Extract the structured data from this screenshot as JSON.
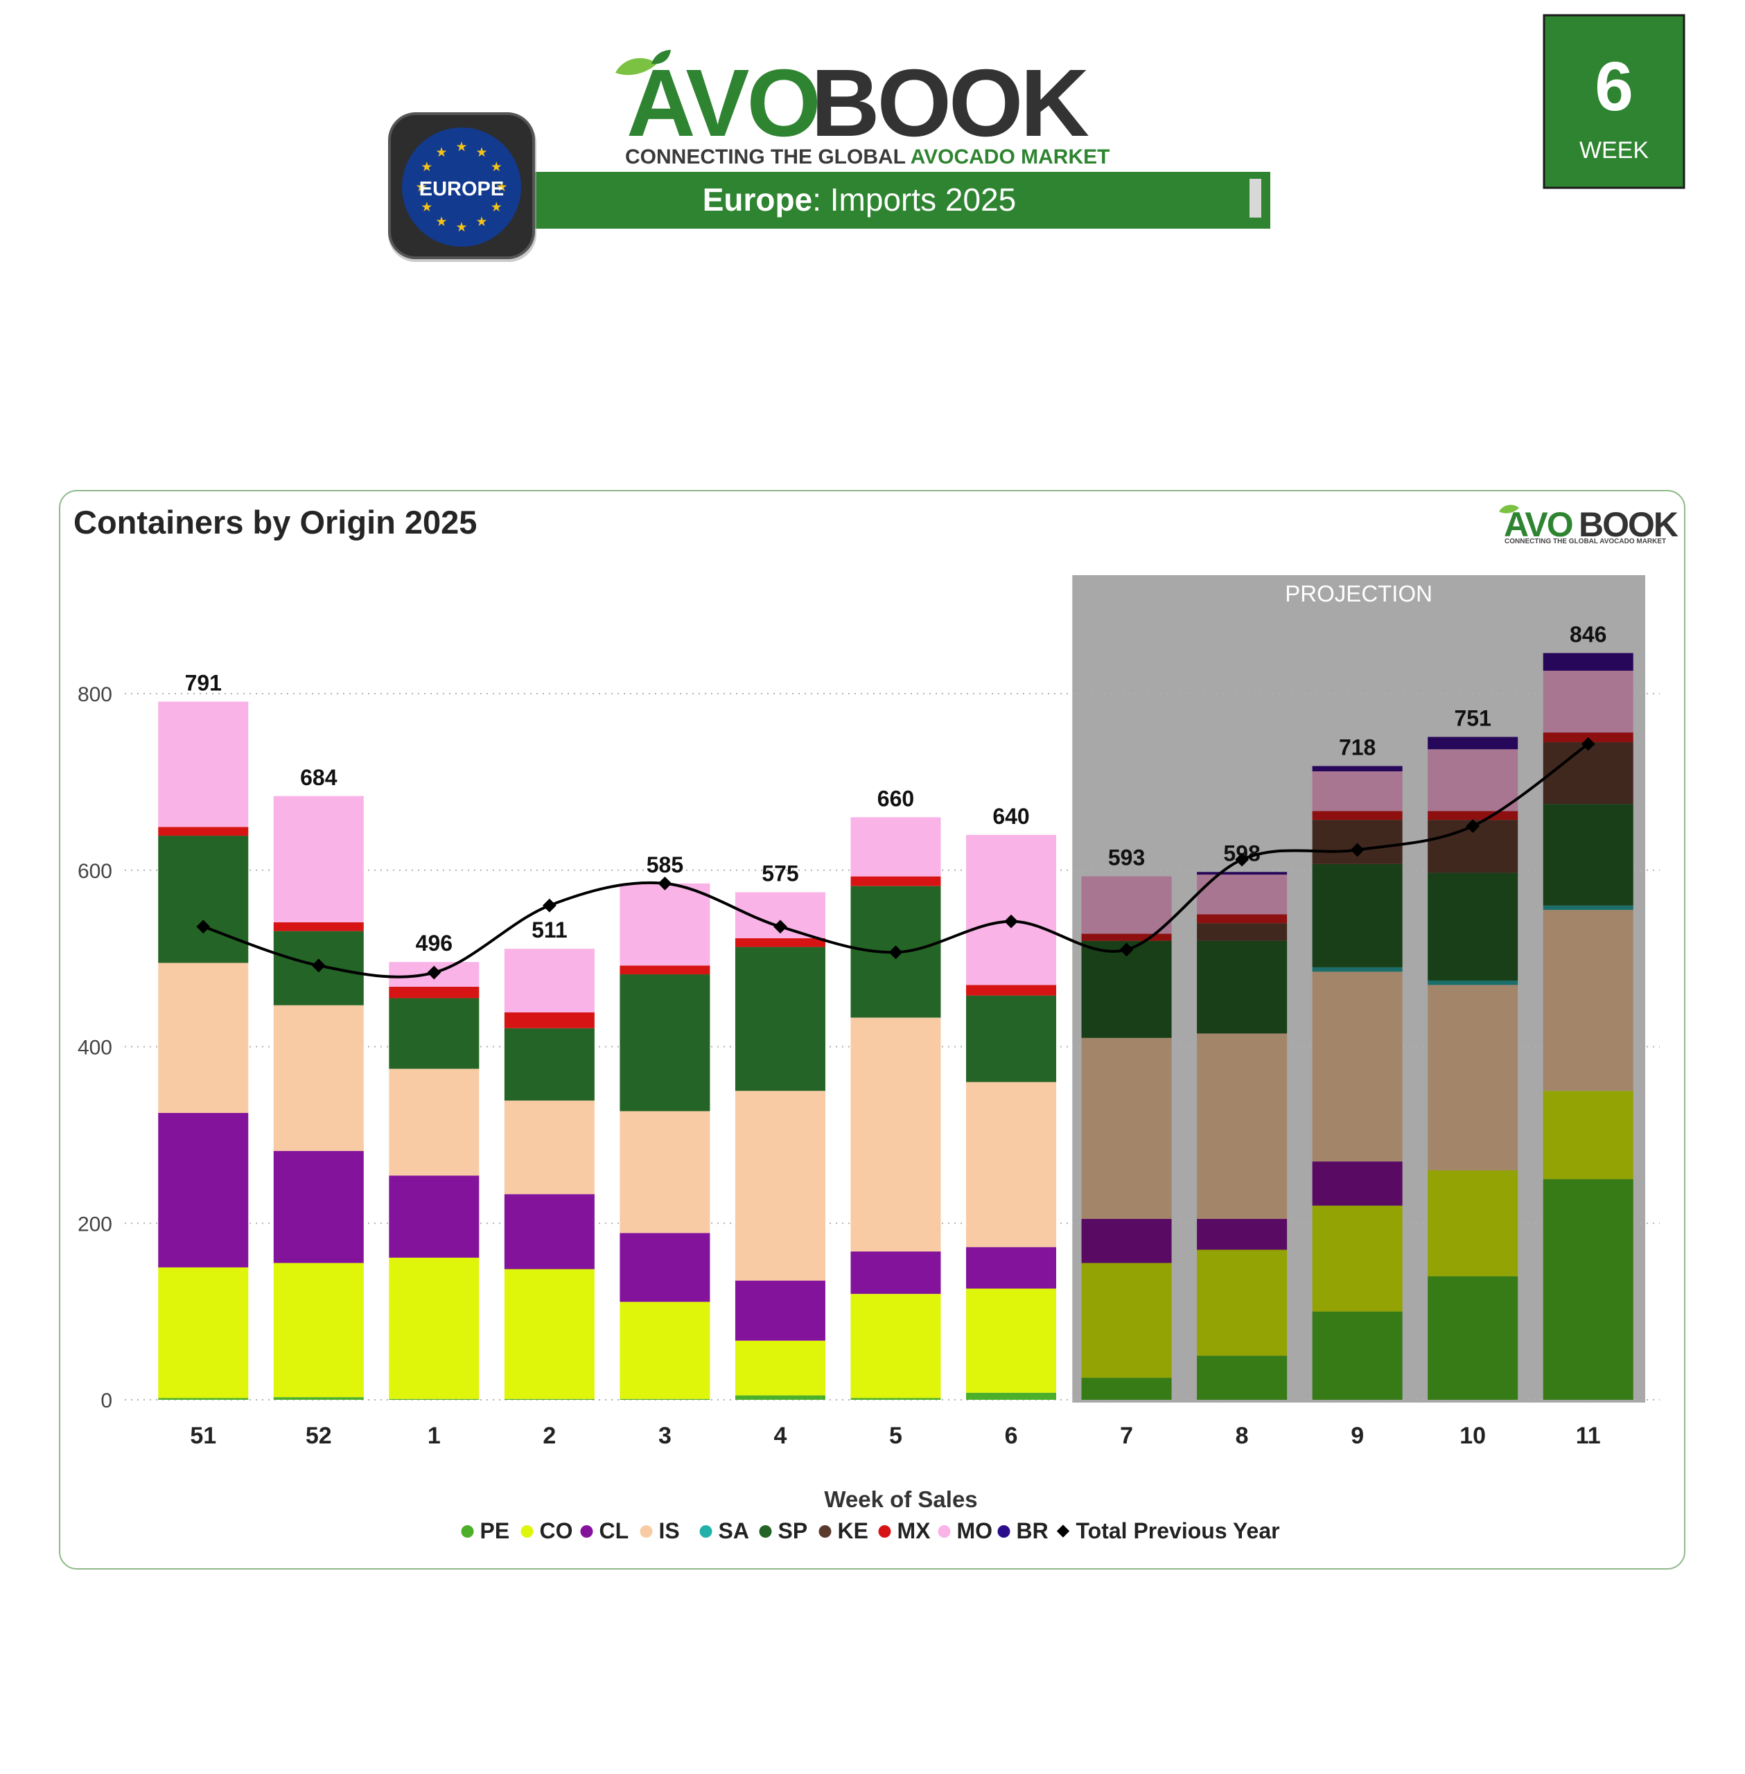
{
  "header": {
    "brand_main_a": "AVO",
    "brand_main_b": "BOOK",
    "tagline_a": "CONNECTING THE GLOBAL ",
    "tagline_b": "AVOCADO MARKET",
    "badge_region": "EUROPE",
    "banner_bold": "Europe",
    "banner_rest": ": Imports 2025",
    "week_number": "6",
    "week_label": "WEEK"
  },
  "colors": {
    "brand_green": "#2e8430",
    "brand_dark": "#333333",
    "badge_blue": "#123a8f",
    "badge_star": "#f3c21a",
    "projection_bg": "#a8a8a8"
  },
  "chart_data": {
    "type": "bar",
    "stacked": true,
    "title": "Containers by Origin 2025",
    "watermark_a": "AVO",
    "watermark_b": "BOOK",
    "watermark_tagline": "CONNECTING THE GLOBAL AVOCADO MARKET",
    "xlabel": "Week of Sales",
    "ylabel": "",
    "ylim": [
      0,
      880
    ],
    "yticks": [
      0,
      200,
      400,
      600,
      800
    ],
    "grid": true,
    "legend_position": "bottom",
    "projection_label": "PROJECTION",
    "projection_categories": [
      "7",
      "8",
      "9",
      "10",
      "11"
    ],
    "categories": [
      "51",
      "52",
      "1",
      "2",
      "3",
      "4",
      "5",
      "6",
      "7",
      "8",
      "9",
      "10",
      "11"
    ],
    "totals": [
      791,
      684,
      496,
      511,
      585,
      575,
      660,
      640,
      593,
      598,
      718,
      751,
      846
    ],
    "series": [
      {
        "name": "PE",
        "color": "#4caf2a",
        "projection_color": "#367b16",
        "values": [
          2,
          3,
          1,
          1,
          1,
          5,
          2,
          8,
          25,
          50,
          100,
          140,
          250
        ]
      },
      {
        "name": "CO",
        "color": "#dff50a",
        "projection_color": "#92a303",
        "values": [
          148,
          152,
          160,
          147,
          110,
          62,
          118,
          118,
          130,
          120,
          120,
          120,
          100
        ]
      },
      {
        "name": "CL",
        "color": "#84139c",
        "projection_color": "#590b63",
        "values": [
          175,
          127,
          93,
          85,
          78,
          68,
          48,
          47,
          50,
          35,
          50,
          0,
          0
        ]
      },
      {
        "name": "IS",
        "color": "#f8cba4",
        "projection_color": "#a3866a",
        "values": [
          170,
          165,
          121,
          106,
          138,
          215,
          265,
          187,
          205,
          210,
          215,
          210,
          205
        ]
      },
      {
        "name": "SA",
        "color": "#20b2aa",
        "projection_color": "#1b6e6a",
        "values": [
          0,
          0,
          0,
          0,
          0,
          0,
          0,
          0,
          0,
          0,
          5,
          5,
          5
        ]
      },
      {
        "name": "SP",
        "color": "#246426",
        "projection_color": "#183f17",
        "values": [
          144,
          84,
          80,
          82,
          155,
          163,
          149,
          98,
          110,
          105,
          117,
          122,
          115
        ]
      },
      {
        "name": "KE",
        "color": "#5b3a2e",
        "projection_color": "#41281f",
        "values": [
          0,
          0,
          0,
          0,
          0,
          0,
          0,
          0,
          0,
          20,
          50,
          60,
          70
        ]
      },
      {
        "name": "MX",
        "color": "#d61414",
        "projection_color": "#8e0f0f",
        "values": [
          10,
          10,
          13,
          18,
          10,
          10,
          11,
          12,
          8,
          10,
          10,
          10,
          11
        ]
      },
      {
        "name": "MO",
        "color": "#f9b3e6",
        "projection_color": "#a87691",
        "values": [
          142,
          143,
          28,
          72,
          93,
          52,
          67,
          170,
          65,
          45,
          45,
          70,
          70
        ]
      },
      {
        "name": "BR",
        "color": "#2a0d8a",
        "projection_color": "#27075a",
        "values": [
          0,
          0,
          0,
          0,
          0,
          0,
          0,
          0,
          0,
          3,
          6,
          14,
          20
        ]
      }
    ],
    "line_series": {
      "name": "Total Previous Year",
      "color": "#000000",
      "values": [
        536,
        492,
        484,
        560,
        585,
        536,
        507,
        542,
        510,
        612,
        623,
        650,
        743
      ]
    }
  }
}
